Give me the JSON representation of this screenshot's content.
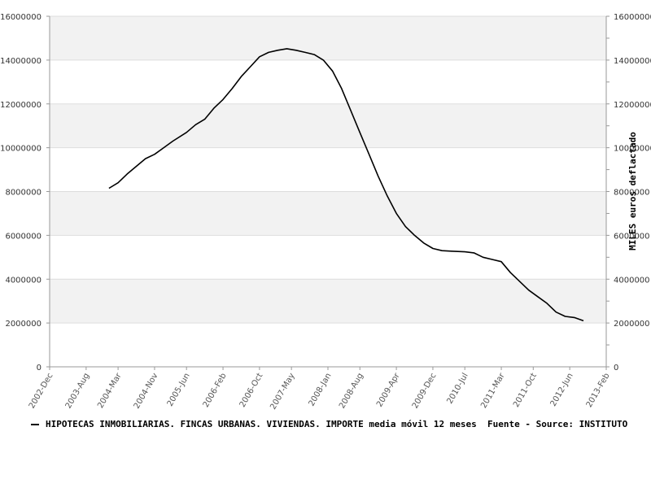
{
  "chart_data": {
    "type": "line",
    "ylabel": "MILES euros deflactado",
    "ylim": [
      0,
      16000000
    ],
    "y_ticks": [
      "0",
      "2000000",
      "4000000",
      "6000000",
      "8000000",
      "10000000",
      "12000000",
      "14000000",
      "16000000"
    ],
    "x_ticks": [
      "2002-Dec",
      "2003-Aug",
      "2004-Mar",
      "2004-Nov",
      "2005-Jun",
      "2006-Feb",
      "2006-Oct",
      "2007-May",
      "2008-Jan",
      "2008-Aug",
      "2009-Apr",
      "2009-Dec",
      "2010-Jul",
      "2011-Mar",
      "2011-Oct",
      "2012-Jun",
      "2013-Feb"
    ],
    "grid": true,
    "series": [
      {
        "name": "HIPOTECAS INMOBILIARIAS. FINCAS URBANAS. VIVIENDAS. IMPORTE media móvil 12 meses",
        "color": "#000000",
        "points": [
          [
            "2004-Jan",
            8150000
          ],
          [
            "2004-Mar",
            8400000
          ],
          [
            "2004-May",
            8800000
          ],
          [
            "2004-Jul",
            9150000
          ],
          [
            "2004-Sep",
            9500000
          ],
          [
            "2004-Nov",
            9700000
          ],
          [
            "2005-Jan",
            10000000
          ],
          [
            "2005-Mar",
            10300000
          ],
          [
            "2005-Jun",
            10700000
          ],
          [
            "2005-Aug",
            11050000
          ],
          [
            "2005-Oct",
            11300000
          ],
          [
            "2005-Dec",
            11800000
          ],
          [
            "2006-Feb",
            12200000
          ],
          [
            "2006-Apr",
            12700000
          ],
          [
            "2006-Jun",
            13250000
          ],
          [
            "2006-Aug",
            13700000
          ],
          [
            "2006-Oct",
            14150000
          ],
          [
            "2006-Dec",
            14350000
          ],
          [
            "2007-Feb",
            14450000
          ],
          [
            "2007-Apr",
            14520000
          ],
          [
            "2007-Jun",
            14450000
          ],
          [
            "2007-Aug",
            14350000
          ],
          [
            "2007-Oct",
            14250000
          ],
          [
            "2007-Dec",
            14000000
          ],
          [
            "2008-Feb",
            13500000
          ],
          [
            "2008-Apr",
            12700000
          ],
          [
            "2008-Jun",
            11700000
          ],
          [
            "2008-Aug",
            10700000
          ],
          [
            "2008-Oct",
            9700000
          ],
          [
            "2008-Dec",
            8700000
          ],
          [
            "2009-Feb",
            7800000
          ],
          [
            "2009-Apr",
            7000000
          ],
          [
            "2009-Jun",
            6400000
          ],
          [
            "2009-Aug",
            6000000
          ],
          [
            "2009-Oct",
            5650000
          ],
          [
            "2009-Dec",
            5400000
          ],
          [
            "2010-Feb",
            5300000
          ],
          [
            "2010-Apr",
            5280000
          ],
          [
            "2010-Jul",
            5250000
          ],
          [
            "2010-Sep",
            5200000
          ],
          [
            "2010-Nov",
            5000000
          ],
          [
            "2011-Jan",
            4900000
          ],
          [
            "2011-Mar",
            4800000
          ],
          [
            "2011-May",
            4300000
          ],
          [
            "2011-Jul",
            3900000
          ],
          [
            "2011-Sep",
            3500000
          ],
          [
            "2011-Nov",
            3200000
          ],
          [
            "2012-Jan",
            2900000
          ],
          [
            "2012-Mar",
            2500000
          ],
          [
            "2012-May",
            2300000
          ],
          [
            "2012-Jul",
            2250000
          ],
          [
            "2012-Sep",
            2100000
          ]
        ]
      }
    ]
  },
  "legend": {
    "text": "HIPOTECAS INMOBILIARIAS. FINCAS URBANAS. VIVIENDAS. IMPORTE media móvil 12 meses  Fuente - Source: INSTITUTO"
  },
  "colors": {
    "band": "#f2f2f2",
    "grid": "#dddddd",
    "axis": "#999999",
    "line": "#000000"
  }
}
